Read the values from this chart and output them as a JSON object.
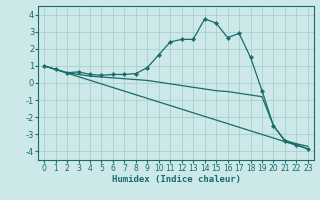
{
  "xlabel": "Humidex (Indice chaleur)",
  "xlim": [
    -0.5,
    23.5
  ],
  "ylim": [
    -4.5,
    4.5
  ],
  "xticks": [
    0,
    1,
    2,
    3,
    4,
    5,
    6,
    7,
    8,
    9,
    10,
    11,
    12,
    13,
    14,
    15,
    16,
    17,
    18,
    19,
    20,
    21,
    22,
    23
  ],
  "yticks": [
    -4,
    -3,
    -2,
    -1,
    0,
    1,
    2,
    3,
    4
  ],
  "bg_color": "#cce8e8",
  "grid_color": "#aacfcf",
  "line_color": "#1a6b6b",
  "line1_x": [
    0,
    1,
    2,
    3,
    4,
    5,
    6,
    7,
    8,
    9,
    10,
    11,
    12,
    13,
    14,
    15,
    16,
    17,
    18,
    19,
    20,
    21,
    22,
    23
  ],
  "line1_y": [
    1.0,
    0.8,
    0.6,
    0.65,
    0.5,
    0.45,
    0.5,
    0.5,
    0.55,
    0.9,
    1.65,
    2.4,
    2.55,
    2.55,
    3.75,
    3.5,
    2.65,
    2.9,
    1.5,
    -0.45,
    -2.5,
    -3.4,
    -3.6,
    -3.85
  ],
  "line2_x": [
    0,
    1,
    2,
    3,
    4,
    5,
    6,
    7,
    8,
    9,
    10,
    11,
    12,
    13,
    14,
    15,
    16,
    17,
    18,
    19,
    20,
    21,
    22,
    23
  ],
  "line2_y": [
    1.0,
    0.8,
    0.6,
    0.5,
    0.4,
    0.35,
    0.3,
    0.25,
    0.2,
    0.15,
    0.05,
    -0.05,
    -0.15,
    -0.25,
    -0.35,
    -0.45,
    -0.5,
    -0.6,
    -0.7,
    -0.8,
    -2.5,
    -3.35,
    -3.55,
    -3.7
  ],
  "line3_x": [
    0,
    23
  ],
  "line3_y": [
    1.0,
    -3.85
  ]
}
